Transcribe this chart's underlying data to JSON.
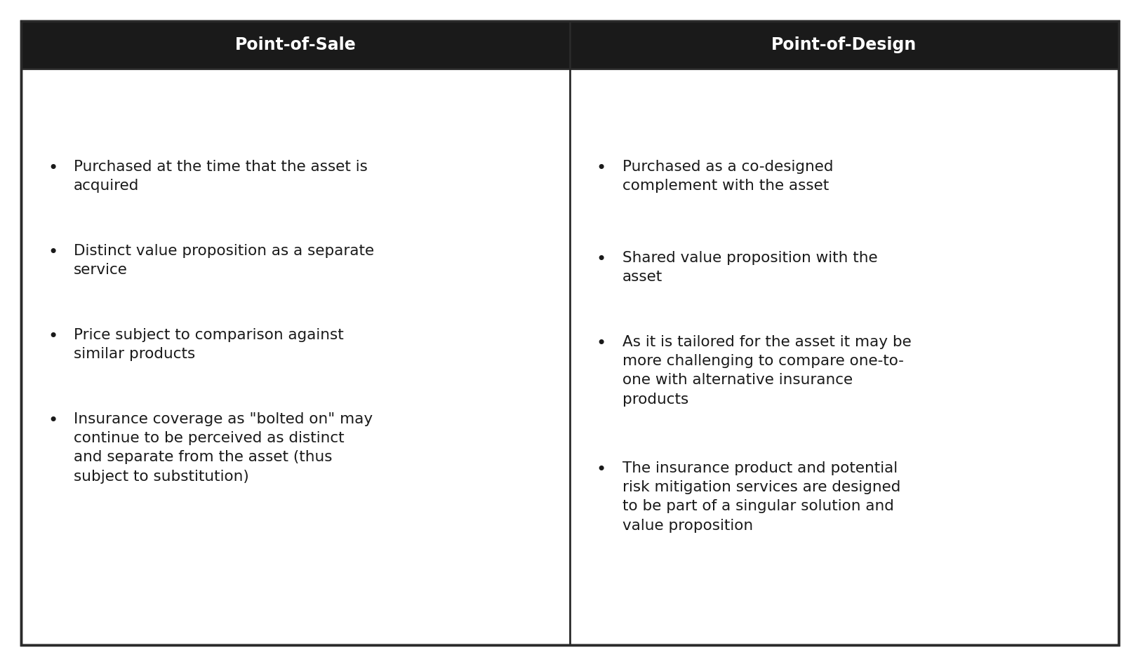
{
  "header_bg_color": "#1a1a1a",
  "header_text_color": "#ffffff",
  "body_bg_color": "#ffffff",
  "border_color": "#2a2a2a",
  "text_color": "#1a1a1a",
  "col1_header": "Point-of-Sale",
  "col2_header": "Point-of-Design",
  "col1_bullets": [
    "Purchased at the time that the asset is\nacquired",
    "Distinct value proposition as a separate\nservice",
    "Price subject to comparison against\nsimilar products",
    "Insurance coverage as \"bolted on\" may\ncontinue to be perceived as distinct\nand separate from the asset (thus\nsubject to substitution)"
  ],
  "col2_bullets": [
    "Purchased as a co-designed\ncomplement with the asset",
    "Shared value proposition with the\nasset",
    "As it is tailored for the asset it may be\nmore challenging to compare one-to-\none with alternative insurance\nproducts",
    "The insurance product and potential\nrisk mitigation services are designed\nto be part of a singular solution and\nvalue proposition"
  ],
  "header_fontsize": 17,
  "body_fontsize": 15.5,
  "bullet_char": "•",
  "fig_width": 16.24,
  "fig_height": 9.5,
  "dpi": 100
}
